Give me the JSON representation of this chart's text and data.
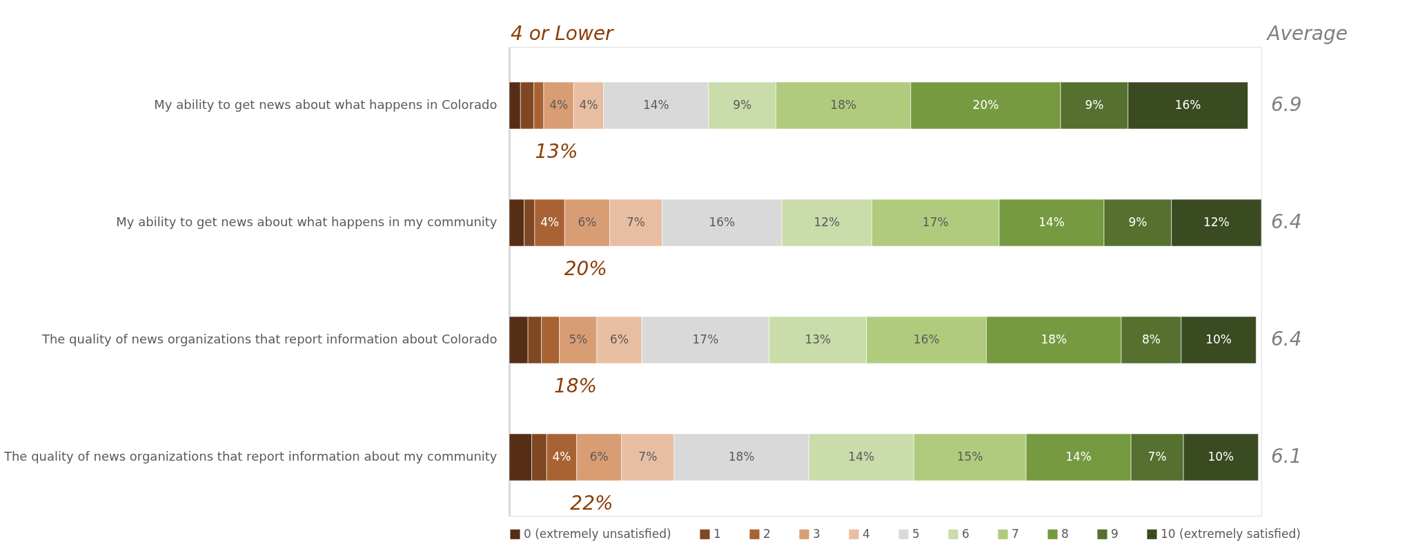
{
  "chart_data": {
    "type": "bar",
    "orientation": "horizontal",
    "stacked": true,
    "tick_labels": "y",
    "legend": "bottom",
    "grid": false,
    "categories": [
      "My ability to get news about what happens in Colorado",
      "My ability to get news about what happens in my community",
      "The quality of news organizations that report information about Colorado",
      "The quality of news organizations that report information about my community"
    ],
    "series": [
      {
        "name": "0 (extremely unsatisfied)",
        "color": "#552e15",
        "values": [
          1.5,
          2.0,
          2.5,
          3.0
        ],
        "value_labels": [
          null,
          null,
          null,
          null
        ]
      },
      {
        "name": "1",
        "color": "#7f4722",
        "values": [
          1.8,
          1.4,
          1.8,
          2.0
        ],
        "value_labels": [
          null,
          null,
          null,
          null
        ]
      },
      {
        "name": "2",
        "color": "#a86233",
        "values": [
          1.3,
          4,
          2.4,
          4
        ],
        "value_labels": [
          null,
          "4%",
          null,
          "4%"
        ]
      },
      {
        "name": "3",
        "color": "#d99d74",
        "values": [
          4,
          6,
          5,
          6
        ],
        "value_labels": [
          "4%",
          "6%",
          "5%",
          "6%"
        ]
      },
      {
        "name": "4",
        "color": "#e8bea2",
        "values": [
          4,
          7,
          6,
          7
        ],
        "value_labels": [
          "4%",
          "7%",
          "6%",
          "7%"
        ]
      },
      {
        "name": "5",
        "color": "#d9d9d9",
        "values": [
          14,
          16,
          17,
          18
        ],
        "value_labels": [
          "14%",
          "16%",
          "17%",
          "18%"
        ]
      },
      {
        "name": "6",
        "color": "#c9dcaa",
        "values": [
          9,
          12,
          13,
          14
        ],
        "value_labels": [
          "9%",
          "12%",
          "13%",
          "14%"
        ]
      },
      {
        "name": "7",
        "color": "#b0cb7e",
        "values": [
          18,
          17,
          16,
          15
        ],
        "value_labels": [
          "18%",
          "17%",
          "16%",
          "15%"
        ]
      },
      {
        "name": "8",
        "color": "#769a40",
        "values": [
          20,
          14,
          18,
          14
        ],
        "value_labels": [
          "20%",
          "14%",
          "18%",
          "14%"
        ]
      },
      {
        "name": "9",
        "color": "#55702f",
        "values": [
          9,
          9,
          8,
          7
        ],
        "value_labels": [
          "9%",
          "9%",
          "8%",
          "7%"
        ]
      },
      {
        "name": "10 (extremely satisfied)",
        "color": "#3a4a21",
        "values": [
          16,
          12,
          10,
          10
        ],
        "value_labels": [
          "16%",
          "12%",
          "10%",
          "10%"
        ]
      }
    ],
    "annotations": [
      "4 or Lower",
      "Average",
      "13%",
      "20%",
      "18%",
      "22%",
      "6.9",
      "6.4",
      "6.4",
      "6.1"
    ]
  }
}
